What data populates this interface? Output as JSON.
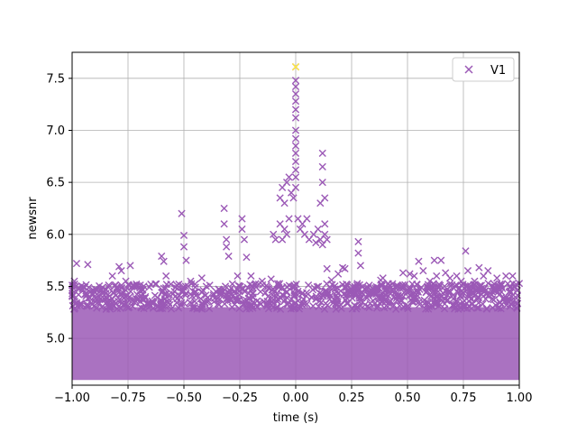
{
  "chart_data": {
    "type": "scatter",
    "xlabel": "time (s)",
    "ylabel": "newsnr",
    "xlim": [
      -1.0,
      1.0
    ],
    "ylim": [
      4.55,
      7.75
    ],
    "x_ticks": [
      -1.0,
      -0.75,
      -0.5,
      -0.25,
      0.0,
      0.25,
      0.5,
      0.75,
      1.0
    ],
    "x_tick_labels": [
      "−1.00",
      "−0.75",
      "−0.50",
      "−0.25",
      "0.00",
      "0.25",
      "0.50",
      "0.75",
      "1.00"
    ],
    "y_ticks": [
      5.0,
      5.5,
      6.0,
      6.5,
      7.0,
      7.5
    ],
    "y_tick_labels": [
      "5.0",
      "5.5",
      "6.0",
      "6.5",
      "7.0",
      "7.5"
    ],
    "grid": true,
    "legend_position": "top-right",
    "marker": "x",
    "series": [
      {
        "name": "V1",
        "color": "#9b59b6",
        "points": [
          [
            -0.98,
            5.72
          ],
          [
            -0.99,
            5.55
          ],
          [
            -0.93,
            5.71
          ],
          [
            -0.9,
            5.45
          ],
          [
            -0.85,
            5.47
          ],
          [
            -0.82,
            5.6
          ],
          [
            -0.79,
            5.69
          ],
          [
            -0.78,
            5.65
          ],
          [
            -0.76,
            5.55
          ],
          [
            -0.74,
            5.7
          ],
          [
            -0.71,
            5.5
          ],
          [
            -0.69,
            5.38
          ],
          [
            -0.6,
            5.79
          ],
          [
            -0.59,
            5.74
          ],
          [
            -0.58,
            5.6
          ],
          [
            -0.51,
            6.2
          ],
          [
            -0.5,
            5.99
          ],
          [
            -0.5,
            5.88
          ],
          [
            -0.49,
            5.75
          ],
          [
            -0.47,
            5.55
          ],
          [
            -0.42,
            5.58
          ],
          [
            -0.4,
            5.5
          ],
          [
            -0.32,
            6.25
          ],
          [
            -0.32,
            6.1
          ],
          [
            -0.31,
            5.95
          ],
          [
            -0.31,
            5.88
          ],
          [
            -0.3,
            5.79
          ],
          [
            -0.26,
            5.6
          ],
          [
            -0.24,
            6.15
          ],
          [
            -0.24,
            6.05
          ],
          [
            -0.23,
            5.95
          ],
          [
            -0.22,
            5.78
          ],
          [
            -0.2,
            5.6
          ],
          [
            -0.15,
            5.55
          ],
          [
            -0.11,
            5.57
          ],
          [
            -0.1,
            6.0
          ],
          [
            -0.09,
            5.95
          ],
          [
            -0.04,
            5.45
          ],
          [
            -0.02,
            5.32
          ],
          [
            -0.07,
            6.35
          ],
          [
            -0.06,
            6.45
          ],
          [
            -0.05,
            6.3
          ],
          [
            -0.04,
            6.5
          ],
          [
            -0.03,
            6.55
          ],
          [
            -0.02,
            6.4
          ],
          [
            -0.01,
            6.35
          ],
          [
            -0.07,
            6.1
          ],
          [
            -0.05,
            6.05
          ],
          [
            -0.03,
            6.15
          ],
          [
            -0.06,
            5.95
          ],
          [
            -0.04,
            6.0
          ],
          [
            0.0,
            7.61
          ],
          [
            0.0,
            7.48
          ],
          [
            0.0,
            7.42
          ],
          [
            0.0,
            7.35
          ],
          [
            0.0,
            7.28
          ],
          [
            0.0,
            7.2
          ],
          [
            0.0,
            7.12
          ],
          [
            0.0,
            7.0
          ],
          [
            0.0,
            6.92
          ],
          [
            0.0,
            6.85
          ],
          [
            0.0,
            6.78
          ],
          [
            0.0,
            6.7
          ],
          [
            0.0,
            6.62
          ],
          [
            0.0,
            6.55
          ],
          [
            0.0,
            6.45
          ],
          [
            0.01,
            6.15
          ],
          [
            0.02,
            6.05
          ],
          [
            0.03,
            6.1
          ],
          [
            0.04,
            6.0
          ],
          [
            0.05,
            6.15
          ],
          [
            0.06,
            5.95
          ],
          [
            0.05,
            5.33
          ],
          [
            0.08,
            6.0
          ],
          [
            0.09,
            5.92
          ],
          [
            0.1,
            6.05
          ],
          [
            0.11,
            6.3
          ],
          [
            0.12,
            6.78
          ],
          [
            0.12,
            6.65
          ],
          [
            0.12,
            6.5
          ],
          [
            0.13,
            6.35
          ],
          [
            0.13,
            6.1
          ],
          [
            0.14,
            5.95
          ],
          [
            0.12,
            5.9
          ],
          [
            0.13,
            6.0
          ],
          [
            0.11,
            5.95
          ],
          [
            0.14,
            5.67
          ],
          [
            0.16,
            5.56
          ],
          [
            0.19,
            5.62
          ],
          [
            0.21,
            5.68
          ],
          [
            0.22,
            5.67
          ],
          [
            0.28,
            5.93
          ],
          [
            0.28,
            5.82
          ],
          [
            0.29,
            5.7
          ],
          [
            0.3,
            5.5
          ],
          [
            0.34,
            5.43
          ],
          [
            0.38,
            5.56
          ],
          [
            0.39,
            5.58
          ],
          [
            0.42,
            5.5
          ],
          [
            0.45,
            5.48
          ],
          [
            0.48,
            5.63
          ],
          [
            0.51,
            5.62
          ],
          [
            0.53,
            5.6
          ],
          [
            0.55,
            5.74
          ],
          [
            0.57,
            5.65
          ],
          [
            0.6,
            5.55
          ],
          [
            0.62,
            5.75
          ],
          [
            0.63,
            5.6
          ],
          [
            0.65,
            5.75
          ],
          [
            0.67,
            5.63
          ],
          [
            0.69,
            5.58
          ],
          [
            0.72,
            5.6
          ],
          [
            0.74,
            5.55
          ],
          [
            0.76,
            5.84
          ],
          [
            0.77,
            5.65
          ],
          [
            0.8,
            5.55
          ],
          [
            0.82,
            5.68
          ],
          [
            0.84,
            5.6
          ],
          [
            0.86,
            5.65
          ],
          [
            0.88,
            5.5
          ],
          [
            0.9,
            5.58
          ],
          [
            0.94,
            5.6
          ],
          [
            0.97,
            5.6
          ],
          [
            0.98,
            5.5
          ]
        ],
        "dense_band": {
          "y_min": 4.6,
          "y_max": 5.3,
          "description_note": ""
        }
      },
      {
        "name": "",
        "color": "#ffeb3b",
        "points": [
          [
            0.0,
            7.61
          ]
        ]
      }
    ]
  }
}
